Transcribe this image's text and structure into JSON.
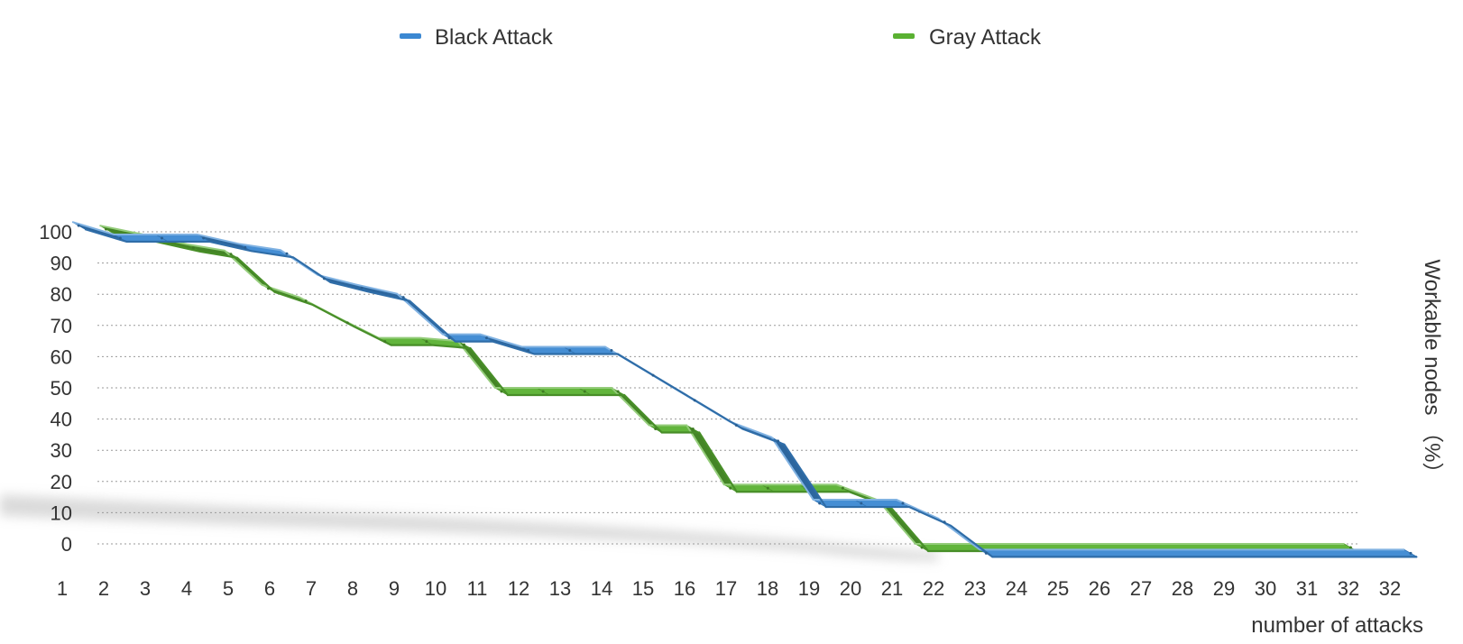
{
  "chart_data": {
    "type": "line",
    "title": "",
    "xlabel": "number of attacks",
    "ylabel": "Workable nodes （%）",
    "ylabel_position": "right",
    "legend_position": "top",
    "grid": true,
    "style": "3d-ribbon",
    "x_ticks": [
      "1",
      "2",
      "3",
      "4",
      "5",
      "6",
      "7",
      "8",
      "9",
      "10",
      "11",
      "12",
      "13",
      "14",
      "15",
      "16",
      "17",
      "18",
      "19",
      "20",
      "21",
      "22",
      "23",
      "24",
      "25",
      "26",
      "27",
      "28",
      "29",
      "30",
      "31",
      "32",
      "32"
    ],
    "y_ticks": [
      0,
      10,
      20,
      30,
      40,
      50,
      60,
      70,
      80,
      90,
      100
    ],
    "ylim": [
      0,
      100
    ],
    "series": [
      {
        "name": "Gray Attack",
        "color": "#5ab132",
        "points": [
          {
            "x": 1.9,
            "y": 102
          },
          {
            "x": 3,
            "y": 99
          },
          {
            "x": 4,
            "y": 96
          },
          {
            "x": 4.9,
            "y": 94
          },
          {
            "x": 5.8,
            "y": 83
          },
          {
            "x": 6.7,
            "y": 79
          },
          {
            "x": 7.7,
            "y": 72
          },
          {
            "x": 8.6,
            "y": 66
          },
          {
            "x": 9.6,
            "y": 66
          },
          {
            "x": 10.5,
            "y": 65
          },
          {
            "x": 11.4,
            "y": 50
          },
          {
            "x": 12.4,
            "y": 50
          },
          {
            "x": 13.4,
            "y": 50
          },
          {
            "x": 14.2,
            "y": 50
          },
          {
            "x": 15.1,
            "y": 38
          },
          {
            "x": 16,
            "y": 38
          },
          {
            "x": 16.9,
            "y": 19
          },
          {
            "x": 17.8,
            "y": 19
          },
          {
            "x": 18.7,
            "y": 19
          },
          {
            "x": 19.6,
            "y": 19
          },
          {
            "x": 20.6,
            "y": 14
          },
          {
            "x": 21.5,
            "y": 0
          },
          {
            "x": 31.8,
            "y": 0
          }
        ]
      },
      {
        "name": "Black Attack",
        "color": "#3b88d2",
        "points": [
          {
            "x": 1,
            "y": 105
          },
          {
            "x": 2,
            "y": 101
          },
          {
            "x": 3,
            "y": 101
          },
          {
            "x": 4,
            "y": 101
          },
          {
            "x": 5,
            "y": 98
          },
          {
            "x": 6,
            "y": 96
          },
          {
            "x": 6.9,
            "y": 88
          },
          {
            "x": 7.8,
            "y": 85
          },
          {
            "x": 8.8,
            "y": 82
          },
          {
            "x": 9.9,
            "y": 69
          },
          {
            "x": 10.8,
            "y": 69
          },
          {
            "x": 11.8,
            "y": 65
          },
          {
            "x": 12.8,
            "y": 65
          },
          {
            "x": 13.8,
            "y": 65
          },
          {
            "x": 14.8,
            "y": 57
          },
          {
            "x": 15.8,
            "y": 49
          },
          {
            "x": 16.8,
            "y": 41
          },
          {
            "x": 17.8,
            "y": 36
          },
          {
            "x": 18.8,
            "y": 16
          },
          {
            "x": 19.8,
            "y": 16
          },
          {
            "x": 20.8,
            "y": 16
          },
          {
            "x": 21.8,
            "y": 10
          },
          {
            "x": 22.8,
            "y": 0
          },
          {
            "x": 33,
            "y": 0
          }
        ]
      }
    ]
  }
}
